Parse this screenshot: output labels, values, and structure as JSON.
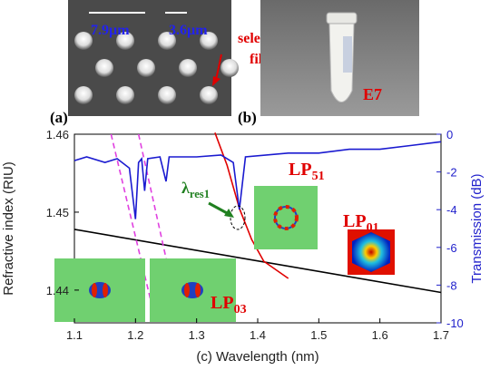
{
  "images": [
    {
      "label": "(a)",
      "annotations": [
        "7.9µm",
        "3.6µm",
        "selective",
        "filling"
      ]
    },
    {
      "label": "(b)",
      "annotations": [
        "E7"
      ]
    }
  ],
  "chart_data": {
    "type": "line",
    "xlabel": "(c) Wavelength (nm)",
    "ylabel": "Refractive index (RIU)",
    "y2label": "Transmission (dB)",
    "xlim": [
      1.1,
      1.7
    ],
    "xticks": [
      1.1,
      1.2,
      1.3,
      1.4,
      1.5,
      1.6,
      1.7
    ],
    "ylim": [
      1.4358,
      1.46
    ],
    "yticks": [
      1.44,
      1.45,
      1.46
    ],
    "y2lim": [
      -10,
      0
    ],
    "y2ticks": [
      -10,
      -8,
      -6,
      -4,
      -2,
      0
    ],
    "series": [
      {
        "color": "#000000",
        "x": [
          1.1,
          1.7
        ],
        "values": [
          1.4478,
          1.4397
        ]
      },
      {
        "color": "#e00000",
        "x": [
          1.33,
          1.35,
          1.37,
          1.39,
          1.41,
          1.45
        ],
        "values": [
          1.4602,
          1.456,
          1.4505,
          1.4465,
          1.4437,
          1.4415
        ]
      },
      {
        "color": "#e040e0",
        "dashed": true,
        "x": [
          1.16,
          1.23
        ],
        "values": [
          1.46,
          1.437
        ]
      },
      {
        "color": "#e040e0",
        "dashed": true,
        "x": [
          1.205,
          1.27
        ],
        "values": [
          1.46,
          1.437
        ]
      },
      {
        "color": "#1a1ad0",
        "axis": "y2",
        "x": [
          1.1,
          1.12,
          1.15,
          1.17,
          1.19,
          1.2,
          1.205,
          1.21,
          1.215,
          1.22,
          1.24,
          1.25,
          1.255,
          1.3,
          1.34,
          1.36,
          1.37,
          1.38,
          1.45,
          1.5,
          1.55,
          1.6,
          1.65,
          1.7
        ],
        "values": [
          -1.4,
          -1.2,
          -1.5,
          -1.3,
          -1.8,
          -4.5,
          -1.5,
          -1.3,
          -3.0,
          -1.3,
          -1.2,
          -2.5,
          -1.2,
          -1.2,
          -1.1,
          -1.5,
          -4.0,
          -1.2,
          -1.0,
          -1.0,
          -0.8,
          -0.8,
          -0.6,
          -0.4
        ]
      }
    ],
    "annotations": [
      {
        "text": "λ",
        "sub": "res1"
      },
      {
        "text": "LP",
        "sub": "51"
      },
      {
        "text": "LP",
        "sub": "01"
      },
      {
        "text": "LP",
        "sub": "03"
      }
    ]
  }
}
